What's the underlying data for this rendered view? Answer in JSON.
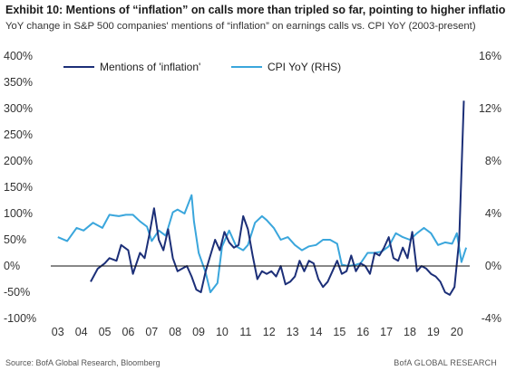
{
  "header": {
    "title": "Exhibit 10: Mentions of “inflation” on calls more than tripled so far, pointing to higher inflation",
    "subtitle": "YoY change in S&P 500 companies' mentions of “inflation” on earnings calls vs. CPI YoY (2003-present)"
  },
  "footer": {
    "source": "Source:  BofA Global Research, Bloomberg",
    "credit": "BofA GLOBAL RESEARCH"
  },
  "colors": {
    "mentions": "#1c2f78",
    "cpi": "#3aa6dc",
    "axis": "#111111"
  },
  "chart_data": {
    "type": "line",
    "title": "Exhibit 10: Mentions of “inflation” on calls more than tripled so far, pointing to higher inflation",
    "x_tick_labels": [
      "03",
      "04",
      "05",
      "06",
      "07",
      "08",
      "09",
      "10",
      "11",
      "12",
      "13",
      "14",
      "15",
      "16",
      "17",
      "18",
      "19",
      "20"
    ],
    "x_tick_years": [
      2003,
      2004,
      2005,
      2006,
      2007,
      2008,
      2009,
      2010,
      2011,
      2012,
      2013,
      2014,
      2015,
      2016,
      2017,
      2018,
      2019,
      2020
    ],
    "y_left": {
      "min": -100,
      "max": 400,
      "ticks": [
        -100,
        -50,
        0,
        50,
        100,
        150,
        200,
        250,
        300,
        350,
        400
      ],
      "unit": "%"
    },
    "y_right": {
      "min": -4,
      "max": 16,
      "ticks": [
        -4,
        0,
        4,
        8,
        12,
        16
      ],
      "unit": "%"
    },
    "legend": [
      "Mentions of 'inflation'",
      "CPI YoY (RHS)"
    ],
    "legend_position": "top",
    "series": [
      {
        "name": "Mentions of 'inflation'",
        "axis": "left",
        "x": [
          2004.4,
          2004.7,
          2005.0,
          2005.2,
          2005.5,
          2005.7,
          2006.0,
          2006.2,
          2006.5,
          2006.7,
          2006.9,
          2007.1,
          2007.3,
          2007.5,
          2007.7,
          2007.9,
          2008.1,
          2008.3,
          2008.5,
          2008.7,
          2008.9,
          2009.1,
          2009.3,
          2009.5,
          2009.7,
          2009.9,
          2010.1,
          2010.3,
          2010.5,
          2010.7,
          2010.9,
          2011.1,
          2011.3,
          2011.5,
          2011.7,
          2011.9,
          2012.1,
          2012.3,
          2012.5,
          2012.7,
          2012.9,
          2013.1,
          2013.3,
          2013.5,
          2013.7,
          2013.9,
          2014.1,
          2014.3,
          2014.5,
          2014.7,
          2014.9,
          2015.1,
          2015.3,
          2015.5,
          2015.7,
          2015.9,
          2016.1,
          2016.3,
          2016.5,
          2016.7,
          2016.9,
          2017.1,
          2017.3,
          2017.5,
          2017.7,
          2017.9,
          2018.1,
          2018.3,
          2018.5,
          2018.7,
          2018.9,
          2019.1,
          2019.3,
          2019.5,
          2019.7,
          2019.9,
          2020.1,
          2020.3
        ],
        "values": [
          -30,
          -5,
          5,
          15,
          10,
          40,
          30,
          -15,
          25,
          15,
          60,
          110,
          50,
          30,
          70,
          15,
          -10,
          -5,
          0,
          -20,
          -45,
          -50,
          -10,
          20,
          50,
          30,
          65,
          45,
          35,
          40,
          95,
          70,
          20,
          -25,
          -10,
          -15,
          -10,
          -20,
          0,
          -35,
          -30,
          -20,
          10,
          -10,
          10,
          5,
          -25,
          -40,
          -30,
          -10,
          10,
          -15,
          -10,
          20,
          -10,
          5,
          0,
          -15,
          25,
          20,
          35,
          55,
          15,
          10,
          35,
          15,
          65,
          -10,
          0,
          -5,
          -15,
          -20,
          -30,
          -50,
          -55,
          -40,
          50,
          315
        ],
        "style": "dark blue line"
      },
      {
        "name": "CPI YoY (RHS)",
        "axis": "right",
        "x": [
          2003.0,
          2003.4,
          2003.8,
          2004.1,
          2004.5,
          2004.9,
          2005.2,
          2005.6,
          2005.9,
          2006.2,
          2006.5,
          2006.8,
          2007.0,
          2007.3,
          2007.6,
          2007.9,
          2008.1,
          2008.4,
          2008.7,
          2008.8,
          2009.0,
          2009.3,
          2009.5,
          2009.8,
          2010.0,
          2010.3,
          2010.6,
          2010.9,
          2011.1,
          2011.4,
          2011.7,
          2011.9,
          2012.2,
          2012.5,
          2012.8,
          2013.1,
          2013.4,
          2013.7,
          2014.0,
          2014.3,
          2014.6,
          2014.9,
          2015.1,
          2015.4,
          2015.7,
          2015.9,
          2016.2,
          2016.5,
          2016.8,
          2017.1,
          2017.4,
          2017.7,
          2018.0,
          2018.3,
          2018.6,
          2018.9,
          2019.2,
          2019.5,
          2019.8,
          2020.0,
          2020.2,
          2020.4
        ],
        "values": [
          2.2,
          1.9,
          2.9,
          2.7,
          3.3,
          2.9,
          3.9,
          3.8,
          3.9,
          3.9,
          3.4,
          3.0,
          1.9,
          2.7,
          2.3,
          4.1,
          4.3,
          4.0,
          5.4,
          3.4,
          1.0,
          -0.5,
          -2.0,
          -1.3,
          1.5,
          2.7,
          1.5,
          1.2,
          1.6,
          3.3,
          3.8,
          3.5,
          2.9,
          2.0,
          2.2,
          1.6,
          1.2,
          1.5,
          1.6,
          2.0,
          2.0,
          1.7,
          0.1,
          0.0,
          0.1,
          0.2,
          1.0,
          1.0,
          1.1,
          1.5,
          2.5,
          2.2,
          2.0,
          2.5,
          2.9,
          2.5,
          1.6,
          1.8,
          1.7,
          2.5,
          0.3,
          1.4
        ],
        "style": "light blue line"
      }
    ]
  }
}
